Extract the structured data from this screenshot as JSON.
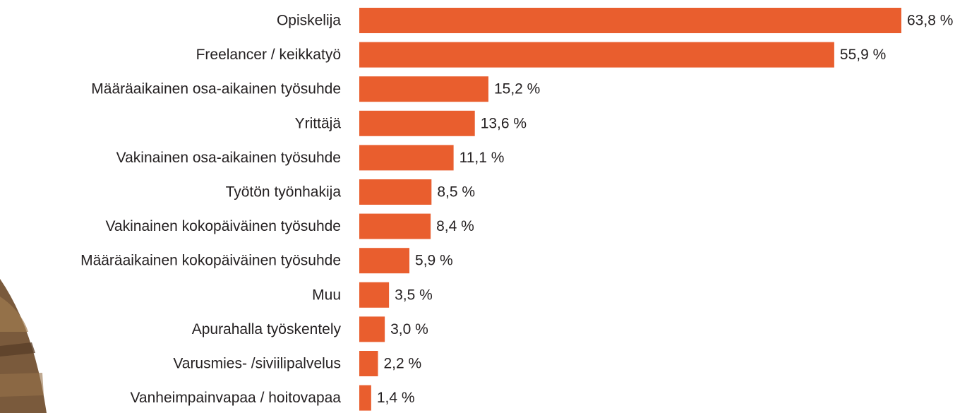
{
  "chart_data": {
    "type": "barh",
    "color": "#e95e2e",
    "categories": [
      "Opiskelija",
      "Freelancer / keikkatyö",
      "Määräaikainen osa-aikainen työsuhde",
      "Yrittäjä",
      "Vakinainen osa-aikainen työsuhde",
      "Työtön työnhakija",
      "Vakinainen kokopäiväinen työsuhde",
      "Määräaikainen kokopäiväinen työsuhde",
      "Muu",
      "Apurahalla työskentely",
      "Varusmies- /siviilipalvelus",
      "Vanheimpainvapaa / hoitovapaa"
    ],
    "values": [
      63.8,
      55.9,
      15.2,
      13.6,
      11.1,
      8.5,
      8.4,
      5.9,
      3.5,
      3.0,
      2.2,
      1.4
    ],
    "value_labels": [
      "63,8 %",
      "55,9 %",
      "15,2 %",
      "13,6 %",
      "11,1 %",
      "8,5 %",
      "8,4 %",
      "5,9 %",
      "3,5 %",
      "3,0 %",
      "2,2 %",
      "1,4 %"
    ]
  }
}
